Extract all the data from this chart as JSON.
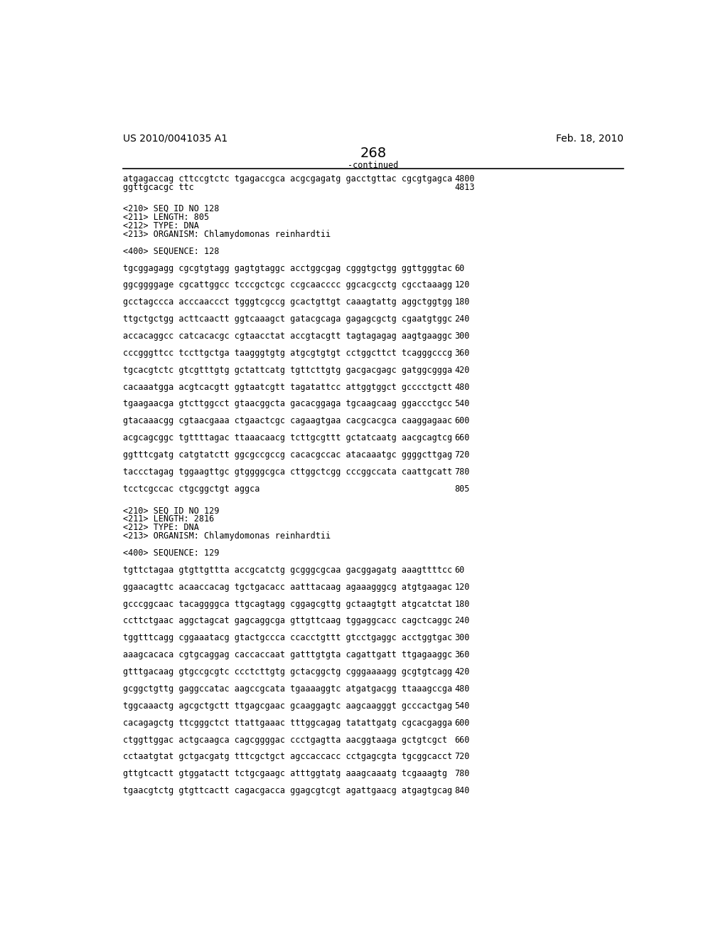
{
  "header_left": "US 2010/0041035 A1",
  "header_right": "Feb. 18, 2010",
  "page_number": "268",
  "continued_label": "-continued",
  "background_color": "#ffffff",
  "text_color": "#000000",
  "font_size_header": 10.0,
  "font_size_page": 14.0,
  "font_size_body": 8.5,
  "lines": [
    {
      "text": "atgagaccag cttccgtctc tgagaccgca acgcgagatg gacctgttac cgcgtgagca",
      "num": "4800",
      "type": "seq"
    },
    {
      "text": "ggttgcacgc ttc",
      "num": "4813",
      "type": "seq"
    },
    {
      "text": "",
      "type": "blank2"
    },
    {
      "text": "<210> SEQ ID NO 128",
      "type": "meta"
    },
    {
      "text": "<211> LENGTH: 805",
      "type": "meta"
    },
    {
      "text": "<212> TYPE: DNA",
      "type": "meta"
    },
    {
      "text": "<213> ORGANISM: Chlamydomonas reinhardtii",
      "type": "meta"
    },
    {
      "text": "",
      "type": "blank1"
    },
    {
      "text": "<400> SEQUENCE: 128",
      "type": "meta"
    },
    {
      "text": "",
      "type": "blank1"
    },
    {
      "text": "tgcggagagg cgcgtgtagg gagtgtaggc acctggcgag cgggtgctgg ggttgggtac",
      "num": "60",
      "type": "seq"
    },
    {
      "text": "",
      "type": "blank1"
    },
    {
      "text": "ggcggggage cgcattggcc tcccgctcgc ccgcaacccc ggcacgcctg cgcctaaagg",
      "num": "120",
      "type": "seq"
    },
    {
      "text": "",
      "type": "blank1"
    },
    {
      "text": "gcctagccca acccaaccct tgggtcgccg gcactgttgt caaagtattg aggctggtgg",
      "num": "180",
      "type": "seq"
    },
    {
      "text": "",
      "type": "blank1"
    },
    {
      "text": "ttgctgctgg acttcaactt ggtcaaagct gatacgcaga gagagcgctg cgaatgtggc",
      "num": "240",
      "type": "seq"
    },
    {
      "text": "",
      "type": "blank1"
    },
    {
      "text": "accacaggcc catcacacgc cgtaacctat accgtacgtt tagtagagag aagtgaaggc",
      "num": "300",
      "type": "seq"
    },
    {
      "text": "",
      "type": "blank1"
    },
    {
      "text": "cccgggttcc tccttgctga taagggtgtg atgcgtgtgt cctggcttct tcagggcccg",
      "num": "360",
      "type": "seq"
    },
    {
      "text": "",
      "type": "blank1"
    },
    {
      "text": "tgcacgtctc gtcgtttgtg gctattcatg tgttcttgtg gacgacgagc gatggcggga",
      "num": "420",
      "type": "seq"
    },
    {
      "text": "",
      "type": "blank1"
    },
    {
      "text": "cacaaatgga acgtcacgtt ggtaatcgtt tagatattcc attggtggct gcccctgctt",
      "num": "480",
      "type": "seq"
    },
    {
      "text": "",
      "type": "blank1"
    },
    {
      "text": "tgaagaacga gtcttggcct gtaacggcta gacacggaga tgcaagcaag ggaccctgcc",
      "num": "540",
      "type": "seq"
    },
    {
      "text": "",
      "type": "blank1"
    },
    {
      "text": "gtacaaacgg cgtaacgaaa ctgaactcgc cagaagtgaa cacgcacgca caaggagaac",
      "num": "600",
      "type": "seq"
    },
    {
      "text": "",
      "type": "blank1"
    },
    {
      "text": "acgcagcggc tgttttagac ttaaacaacg tcttgcgttt gctatcaatg aacgcagtcg",
      "num": "660",
      "type": "seq"
    },
    {
      "text": "",
      "type": "blank1"
    },
    {
      "text": "ggtttcgatg catgtatctt ggcgccgccg cacacgccac atacaaatgc ggggcttgag",
      "num": "720",
      "type": "seq"
    },
    {
      "text": "",
      "type": "blank1"
    },
    {
      "text": "taccctagag tggaagttgc gtggggcgca cttggctcgg cccggccata caattgcatt",
      "num": "780",
      "type": "seq"
    },
    {
      "text": "",
      "type": "blank1"
    },
    {
      "text": "tcctcgccac ctgcggctgt aggca",
      "num": "805",
      "type": "seq"
    },
    {
      "text": "",
      "type": "blank2"
    },
    {
      "text": "<210> SEQ ID NO 129",
      "type": "meta"
    },
    {
      "text": "<211> LENGTH: 2816",
      "type": "meta"
    },
    {
      "text": "<212> TYPE: DNA",
      "type": "meta"
    },
    {
      "text": "<213> ORGANISM: Chlamydomonas reinhardtii",
      "type": "meta"
    },
    {
      "text": "",
      "type": "blank1"
    },
    {
      "text": "<400> SEQUENCE: 129",
      "type": "meta"
    },
    {
      "text": "",
      "type": "blank1"
    },
    {
      "text": "tgttctagaa gtgttgttta accgcatctg gcgggcgcaa gacggagatg aaagttttcc",
      "num": "60",
      "type": "seq"
    },
    {
      "text": "",
      "type": "blank1"
    },
    {
      "text": "ggaacagttc acaaccacag tgctgacacc aatttacaag agaaagggcg atgtgaagac",
      "num": "120",
      "type": "seq"
    },
    {
      "text": "",
      "type": "blank1"
    },
    {
      "text": "gcccggcaac tacaggggca ttgcagtagg cggagcgttg gctaagtgtt atgcatctat",
      "num": "180",
      "type": "seq"
    },
    {
      "text": "",
      "type": "blank1"
    },
    {
      "text": "ccttctgaac aggctagcat gagcaggcga gttgttcaag tggaggcacc cagctcaggc",
      "num": "240",
      "type": "seq"
    },
    {
      "text": "",
      "type": "blank1"
    },
    {
      "text": "tggtttcagg cggaaatacg gtactgccca ccacctgttt gtcctgaggc acctggtgac",
      "num": "300",
      "type": "seq"
    },
    {
      "text": "",
      "type": "blank1"
    },
    {
      "text": "aaagcacaca cgtgcaggag caccaccaat gatttgtgta cagattgatt ttgagaaggc",
      "num": "360",
      "type": "seq"
    },
    {
      "text": "",
      "type": "blank1"
    },
    {
      "text": "gtttgacaag gtgccgcgtc ccctcttgtg gctacggctg cgggaaaagg gcgtgtcagg",
      "num": "420",
      "type": "seq"
    },
    {
      "text": "",
      "type": "blank1"
    },
    {
      "text": "gcggctgttg gaggccatac aagccgcata tgaaaaggtc atgatgacgg ttaaagccga",
      "num": "480",
      "type": "seq"
    },
    {
      "text": "",
      "type": "blank1"
    },
    {
      "text": "tggcaaactg agcgctgctt ttgagcgaac gcaaggagtc aagcaagggt gcccactgag",
      "num": "540",
      "type": "seq"
    },
    {
      "text": "",
      "type": "blank1"
    },
    {
      "text": "cacagagctg ttcgggctct ttattgaaac tttggcagag tatattgatg cgcacgagga",
      "num": "600",
      "type": "seq"
    },
    {
      "text": "",
      "type": "blank1"
    },
    {
      "text": "ctggttggac actgcaagca cagcggggac ccctgagtta aacggtaaga gctgtcgct",
      "num": "660",
      "type": "seq"
    },
    {
      "text": "",
      "type": "blank1"
    },
    {
      "text": "cctaatgtat gctgacgatg tttcgctgct agccaccacc cctgagcgta tgcggcacct",
      "num": "720",
      "type": "seq"
    },
    {
      "text": "",
      "type": "blank1"
    },
    {
      "text": "gttgtcactt gtggatactt tctgcgaagc atttggtatg aaagcaaatg tcgaaagtg",
      "num": "780",
      "type": "seq"
    },
    {
      "text": "",
      "type": "blank1"
    },
    {
      "text": "tgaacgtctg gtgttcactt cagacgacca ggagcgtcgt agattgaacg atgagtgcag",
      "num": "840",
      "type": "seq"
    }
  ]
}
